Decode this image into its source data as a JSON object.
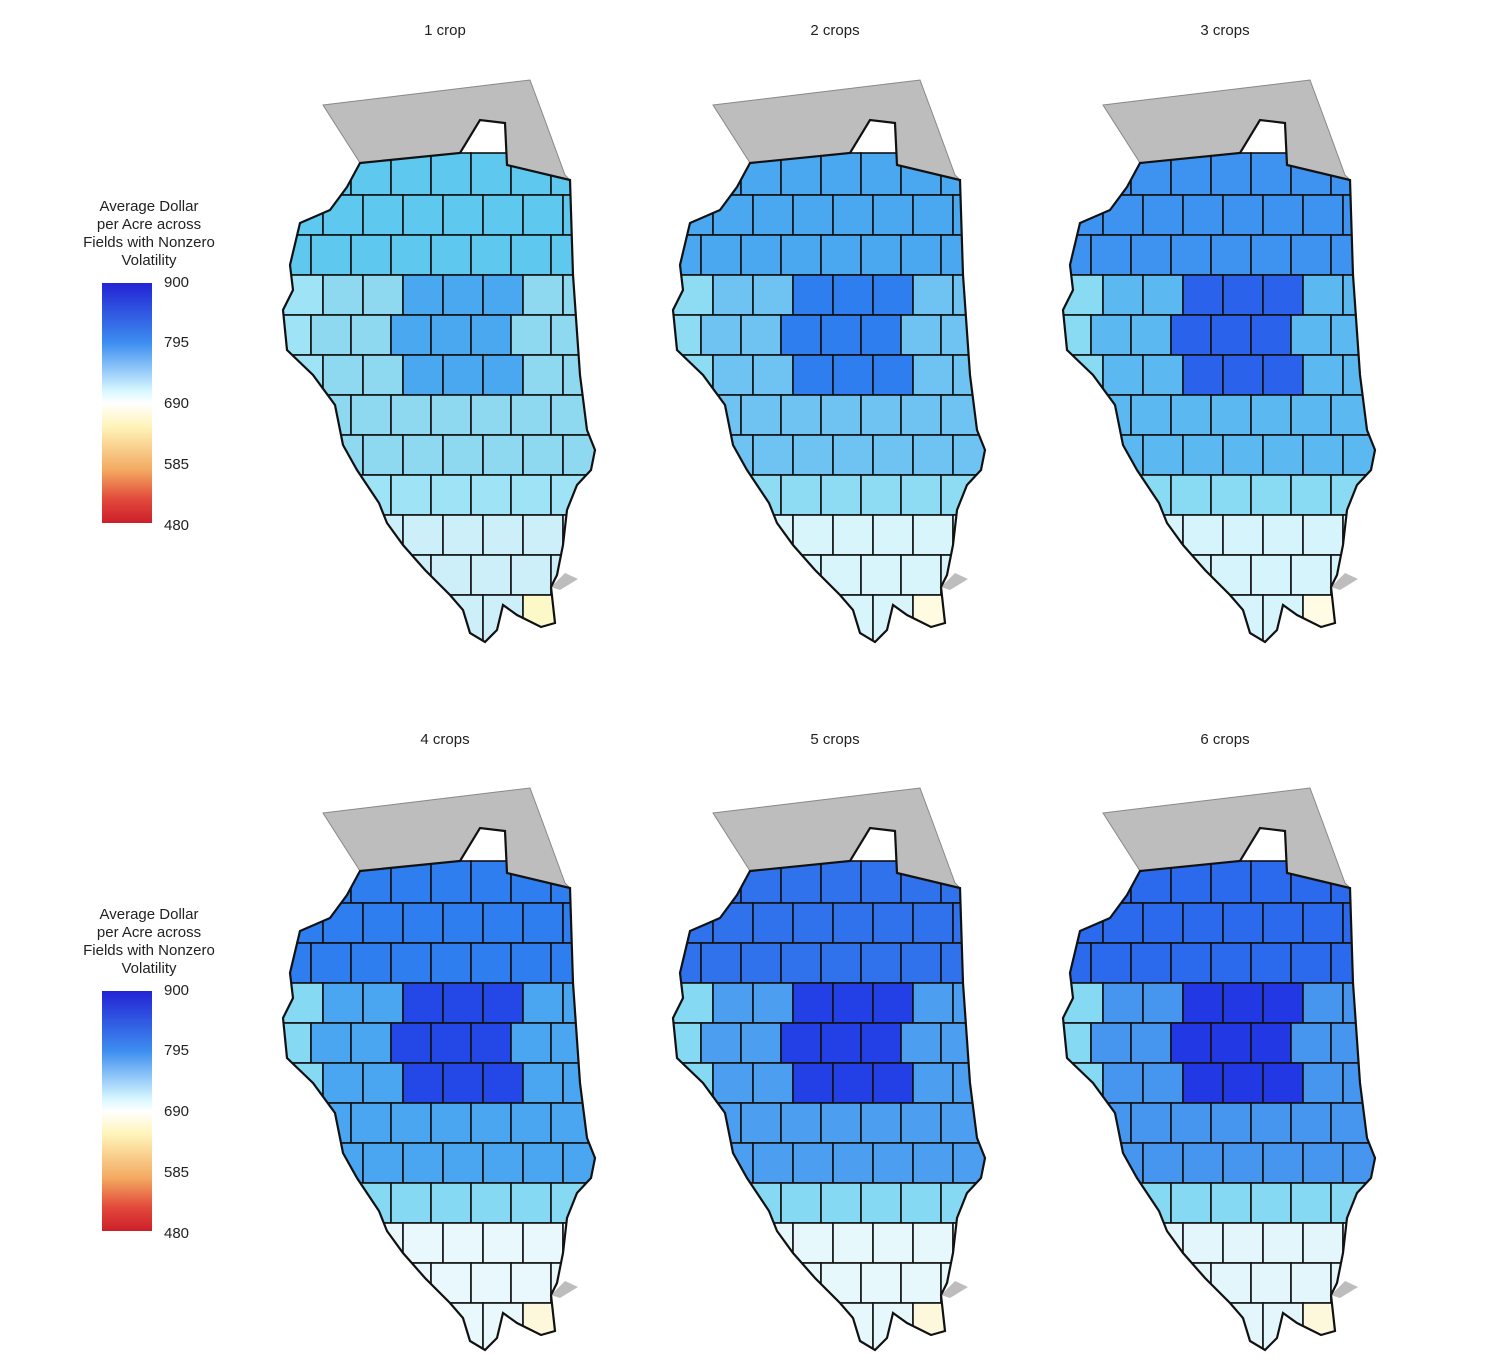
{
  "figure": {
    "panels": [
      {
        "title": "1 crop",
        "north": "#5ec8ee",
        "central": "#8fd9f0",
        "core": "#4aa8f0",
        "south": "#cdeffa",
        "tip": "#fdf8c8",
        "ext": "#9fe3f7"
      },
      {
        "title": "2 crops",
        "north": "#4aa8f0",
        "central": "#6fc3f2",
        "core": "#2f7ef0",
        "south": "#d8f5fb",
        "tip": "#fffbe0",
        "ext": "#8ddcf3"
      },
      {
        "title": "3 crops",
        "north": "#3f93f0",
        "central": "#5bb8f0",
        "core": "#2a62ec",
        "south": "#d6f4fb",
        "tip": "#fffbe4",
        "ext": "#89dbf3"
      },
      {
        "title": "4 crops",
        "north": "#2f7ef0",
        "central": "#4aa6f0",
        "core": "#2448e8",
        "south": "#e9f8fc",
        "tip": "#fdf8dc",
        "ext": "#86d9f2"
      },
      {
        "title": "5 crops",
        "north": "#2f72ec",
        "central": "#4c9ef0",
        "core": "#2240e6",
        "south": "#e6f8fc",
        "tip": "#fdf8dc",
        "ext": "#86d9f2"
      },
      {
        "title": "6 crops",
        "north": "#2b6aec",
        "central": "#4696f0",
        "core": "#2238e4",
        "south": "#e3f6fc",
        "tip": "#fdf8dc",
        "ext": "#86d9f2"
      }
    ],
    "legend": {
      "title_lines": [
        "Average Dollar",
        "per Acre across",
        "Fields with Nonzero",
        "Volatility"
      ],
      "ticks": [
        "900",
        "795",
        "690",
        "585",
        "480"
      ],
      "range": [
        480,
        900
      ]
    },
    "colors": {
      "outside_state": "#bdbdbd",
      "border": "#111111"
    }
  }
}
